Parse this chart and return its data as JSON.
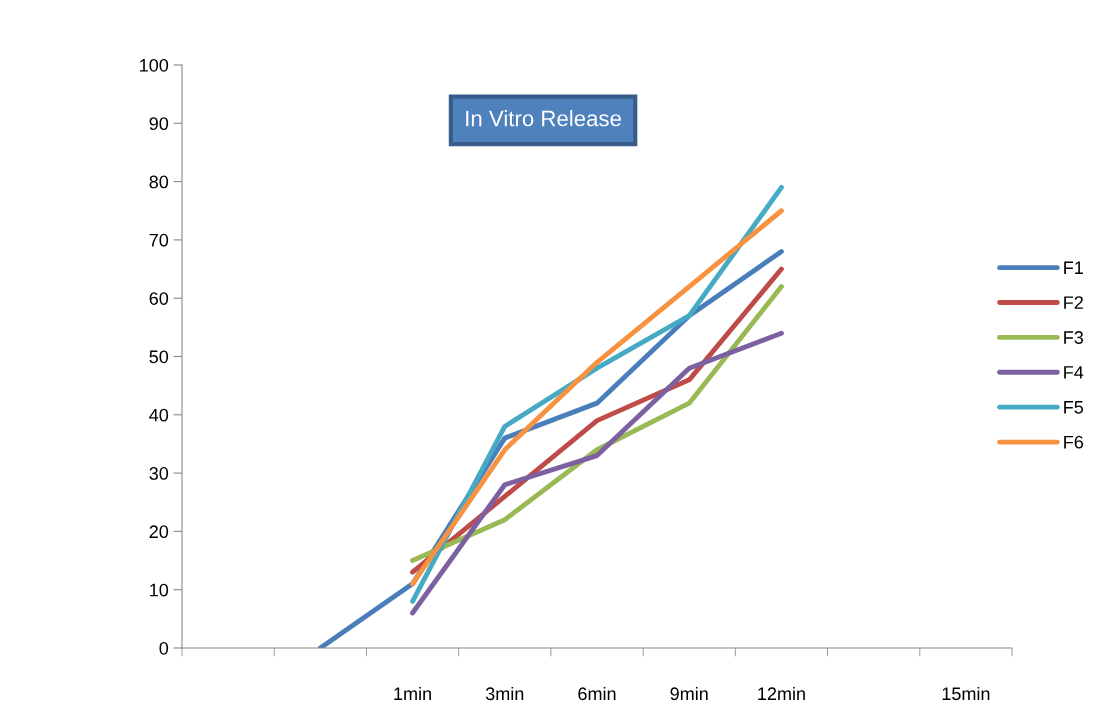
{
  "chart_data": {
    "type": "line",
    "title": "In Vitro Release",
    "categories": [
      null,
      null,
      "1min",
      "3min",
      "6min",
      "9min",
      "12min",
      null,
      "15min"
    ],
    "series": [
      {
        "name": "F1",
        "color": "#4a7ebb",
        "values": [
          null,
          0,
          11,
          36,
          42,
          57,
          68,
          null,
          null
        ]
      },
      {
        "name": "F2",
        "color": "#be4b48",
        "values": [
          null,
          null,
          13,
          26,
          39,
          46,
          65,
          null,
          null
        ]
      },
      {
        "name": "F3",
        "color": "#98b954",
        "values": [
          null,
          null,
          15,
          22,
          34,
          42,
          62,
          null,
          null
        ]
      },
      {
        "name": "F4",
        "color": "#7d60a0",
        "values": [
          null,
          null,
          6,
          28,
          33,
          48,
          54,
          null,
          null
        ]
      },
      {
        "name": "F5",
        "color": "#46aac5",
        "values": [
          null,
          null,
          8,
          38,
          48,
          57,
          79,
          null,
          null
        ]
      },
      {
        "name": "F6",
        "color": "#f69240",
        "values": [
          null,
          null,
          11,
          34,
          49,
          62,
          75,
          null,
          null
        ]
      }
    ],
    "ylim": [
      0,
      100
    ],
    "yticks": [
      0,
      10,
      20,
      30,
      40,
      50,
      60,
      70,
      80,
      90,
      100
    ],
    "grid": false,
    "legend": "right",
    "marker": "none",
    "line_style": "solid"
  }
}
